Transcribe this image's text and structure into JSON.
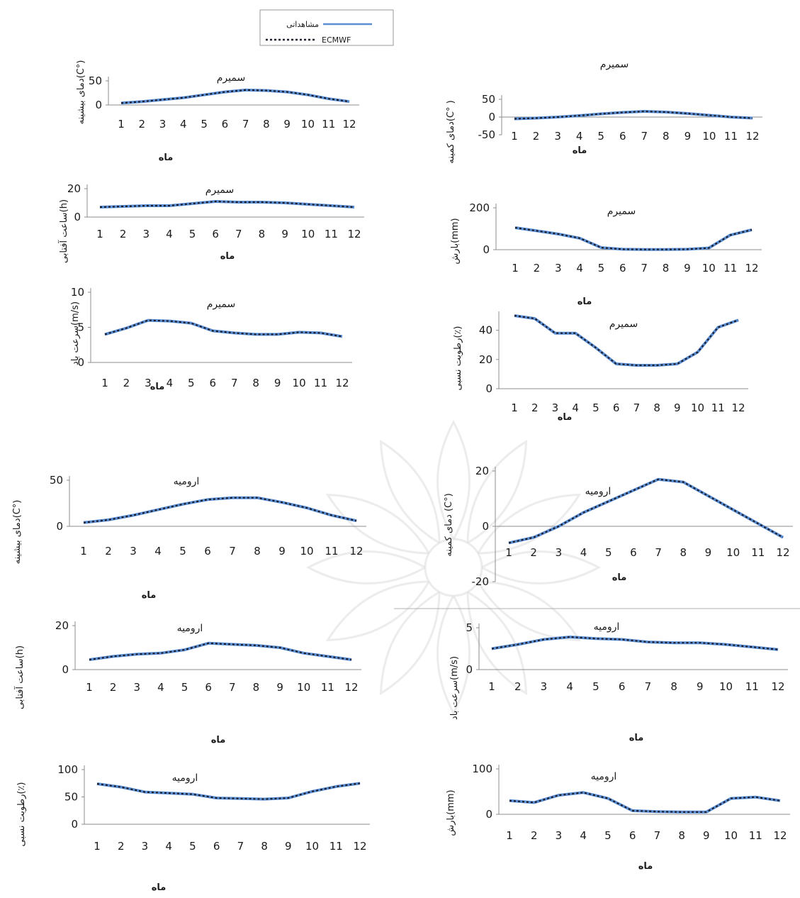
{
  "legend": {
    "observed": "مشاهداتی",
    "model": "ECMWF"
  },
  "chart_data": [
    {
      "id": "s-tmax",
      "type": "line",
      "title": "سمیرم",
      "xlabel": "ماه",
      "ylabel": "دمای بیشینه(C°)",
      "categories": [
        "1",
        "2",
        "3",
        "4",
        "5",
        "6",
        "7",
        "8",
        "9",
        "10",
        "11",
        "12"
      ],
      "yticks": [
        "0",
        "50"
      ],
      "ylim": [
        0,
        50
      ],
      "series": [
        {
          "name": "مشاهداتی",
          "values": [
            4,
            7,
            11,
            15,
            21,
            27,
            31,
            30,
            27,
            21,
            13,
            7
          ]
        },
        {
          "name": "ECMWF",
          "values": [
            4,
            7,
            11,
            15,
            21,
            27,
            31,
            30,
            27,
            21,
            13,
            7
          ]
        }
      ]
    },
    {
      "id": "s-tmin",
      "type": "line",
      "title": "سمیرم",
      "xlabel": "ماه",
      "ylabel": "دمای کمینه(C° )",
      "categories": [
        "1",
        "2",
        "3",
        "4",
        "5",
        "6",
        "7",
        "8",
        "9",
        "10",
        "11",
        "12"
      ],
      "yticks": [
        "-50",
        "0",
        "50"
      ],
      "ylim": [
        -50,
        50
      ],
      "series": [
        {
          "name": "مشاهداتی",
          "values": [
            -5,
            -3,
            0,
            4,
            9,
            13,
            16,
            14,
            10,
            5,
            0,
            -3
          ]
        },
        {
          "name": "ECMWF",
          "values": [
            -5,
            -3,
            0,
            4,
            9,
            13,
            16,
            14,
            10,
            5,
            0,
            -3
          ]
        }
      ]
    },
    {
      "id": "s-sun",
      "type": "line",
      "title": "سمیرم",
      "xlabel": "ماه",
      "ylabel": "ساعت آفتابی(h)",
      "categories": [
        "1",
        "2",
        "3",
        "4",
        "5",
        "6",
        "7",
        "8",
        "9",
        "10",
        "11",
        "12"
      ],
      "yticks": [
        "0",
        "20"
      ],
      "ylim": [
        0,
        20
      ],
      "series": [
        {
          "name": "مشاهداتی",
          "values": [
            7,
            7.5,
            8,
            8,
            9.5,
            11,
            10.5,
            10.5,
            10,
            9,
            8,
            7
          ]
        },
        {
          "name": "ECMWF",
          "values": [
            7,
            7.5,
            8,
            8,
            9.5,
            11,
            10.5,
            10.5,
            10,
            9,
            8,
            7
          ]
        }
      ]
    },
    {
      "id": "s-prec",
      "type": "line",
      "title": "سمیرم",
      "xlabel": "ماه",
      "ylabel": "بارش(mm)",
      "categories": [
        "1",
        "2",
        "3",
        "4",
        "5",
        "6",
        "7",
        "8",
        "9",
        "10",
        "11",
        "12"
      ],
      "yticks": [
        "0",
        "200"
      ],
      "ylim": [
        0,
        200
      ],
      "series": [
        {
          "name": "مشاهداتی",
          "values": [
            105,
            90,
            75,
            55,
            10,
            2,
            1,
            1,
            2,
            8,
            70,
            95
          ]
        },
        {
          "name": "ECMWF",
          "values": [
            105,
            90,
            75,
            55,
            10,
            2,
            1,
            1,
            2,
            8,
            70,
            95
          ]
        }
      ]
    },
    {
      "id": "s-wind",
      "type": "line",
      "title": "سمیرم",
      "xlabel": "ماه",
      "ylabel": "سرعت باد(m/s)",
      "categories": [
        "1",
        "2",
        "3",
        "4",
        "5",
        "6",
        "7",
        "8",
        "9",
        "10",
        "11",
        "12"
      ],
      "yticks": [
        "0",
        "5",
        "10"
      ],
      "ylim": [
        0,
        10
      ],
      "series": [
        {
          "name": "مشاهداتی",
          "values": [
            4,
            4.9,
            6,
            5.9,
            5.6,
            4.5,
            4.2,
            4,
            4,
            4.3,
            4.2,
            3.7
          ]
        },
        {
          "name": "ECMWF",
          "values": [
            4,
            4.9,
            6,
            5.9,
            5.6,
            4.5,
            4.2,
            4,
            4,
            4.3,
            4.2,
            3.7
          ]
        }
      ]
    },
    {
      "id": "s-rh",
      "type": "line",
      "title": "سمیرم",
      "xlabel": "ماه",
      "ylabel": "رطوبت نسبی(٪)",
      "categories": [
        "1",
        "2",
        "3",
        "4",
        "5",
        "6",
        "7",
        "8",
        "9",
        "10",
        "11",
        "12"
      ],
      "yticks": [
        "0",
        "20",
        "40"
      ],
      "ylim": [
        0,
        50
      ],
      "series": [
        {
          "name": "مشاهداتی",
          "values": [
            50,
            48,
            38,
            38,
            28,
            17,
            16,
            16,
            17,
            25,
            42,
            47
          ]
        },
        {
          "name": "ECMWF",
          "values": [
            50,
            48,
            38,
            38,
            28,
            17,
            16,
            16,
            17,
            25,
            42,
            47
          ]
        }
      ]
    },
    {
      "id": "u-tmax",
      "type": "line",
      "title": "ارومیه",
      "xlabel": "ماه",
      "ylabel": "دمای بیشینه(C°)",
      "categories": [
        "1",
        "2",
        "3",
        "4",
        "5",
        "6",
        "7",
        "8",
        "9",
        "10",
        "11",
        "12"
      ],
      "yticks": [
        "0",
        "50"
      ],
      "ylim": [
        0,
        50
      ],
      "series": [
        {
          "name": "مشاهداتی",
          "values": [
            4,
            7,
            12,
            18,
            24,
            29,
            31,
            31,
            26,
            20,
            12,
            6
          ]
        },
        {
          "name": "ECMWF",
          "values": [
            4,
            7,
            12,
            18,
            24,
            29,
            31,
            31,
            26,
            20,
            12,
            6
          ]
        }
      ]
    },
    {
      "id": "u-tmin",
      "type": "line",
      "title": "ارومیه",
      "xlabel": "ماه",
      "ylabel": "دمای کمینه (C°)",
      "categories": [
        "1",
        "2",
        "3",
        "4",
        "5",
        "6",
        "7",
        "8",
        "9",
        "10",
        "11",
        "12"
      ],
      "yticks": [
        "-20",
        "0",
        "20"
      ],
      "ylim": [
        -20,
        20
      ],
      "series": [
        {
          "name": "مشاهداتی",
          "values": [
            -6,
            -4,
            0,
            5,
            9,
            13,
            17,
            16,
            11,
            6,
            1,
            -4
          ]
        },
        {
          "name": "ECMWF",
          "values": [
            -6,
            -4,
            0,
            5,
            9,
            13,
            17,
            16,
            11,
            6,
            1,
            -4
          ]
        }
      ]
    },
    {
      "id": "u-sun",
      "type": "line",
      "title": "ارومیه",
      "xlabel": "ماه",
      "ylabel": "ساعت آفتابی(h)",
      "categories": [
        "1",
        "2",
        "3",
        "4",
        "5",
        "6",
        "7",
        "8",
        "9",
        "10",
        "11",
        "12"
      ],
      "yticks": [
        "0",
        "20"
      ],
      "ylim": [
        0,
        20
      ],
      "series": [
        {
          "name": "مشاهداتی",
          "values": [
            4.5,
            6,
            7,
            7.5,
            9,
            12,
            11.5,
            11,
            10,
            7.5,
            6,
            4.5
          ]
        },
        {
          "name": "ECMWF",
          "values": [
            4.5,
            6,
            7,
            7.5,
            9,
            12,
            11.5,
            11,
            10,
            7.5,
            6,
            4.5
          ]
        }
      ]
    },
    {
      "id": "u-wind",
      "type": "line",
      "title": "ارومیه",
      "xlabel": "ماه",
      "ylabel": "سرعت باد(m/s)",
      "categories": [
        "1",
        "2",
        "3",
        "4",
        "5",
        "6",
        "7",
        "8",
        "9",
        "10",
        "11",
        "12"
      ],
      "yticks": [
        "0",
        "5"
      ],
      "ylim": [
        0,
        5
      ],
      "series": [
        {
          "name": "مشاهداتی",
          "values": [
            2.5,
            3,
            3.6,
            3.9,
            3.7,
            3.6,
            3.3,
            3.2,
            3.2,
            3,
            2.7,
            2.4
          ]
        },
        {
          "name": "ECMWF",
          "values": [
            2.5,
            3,
            3.6,
            3.9,
            3.7,
            3.6,
            3.3,
            3.2,
            3.2,
            3,
            2.7,
            2.4
          ]
        }
      ]
    },
    {
      "id": "u-rh",
      "type": "line",
      "title": "ارومیه",
      "xlabel": "ماه",
      "ylabel": "رطوبت نسبی(٪)",
      "categories": [
        "1",
        "2",
        "3",
        "4",
        "5",
        "6",
        "7",
        "8",
        "9",
        "10",
        "11",
        "12"
      ],
      "yticks": [
        "0",
        "50",
        "100"
      ],
      "ylim": [
        0,
        100
      ],
      "series": [
        {
          "name": "مشاهداتی",
          "values": [
            74,
            68,
            59,
            57,
            55,
            48,
            47,
            46,
            48,
            60,
            69,
            75
          ]
        },
        {
          "name": "ECMWF",
          "values": [
            74,
            68,
            59,
            57,
            55,
            48,
            47,
            46,
            48,
            60,
            69,
            75
          ]
        }
      ]
    },
    {
      "id": "u-prec",
      "type": "line",
      "title": "ارومیه",
      "xlabel": "ماه",
      "ylabel": "بارش(mm)",
      "categories": [
        "1",
        "2",
        "3",
        "4",
        "5",
        "6",
        "7",
        "8",
        "9",
        "10",
        "11",
        "12"
      ],
      "yticks": [
        "0",
        "100"
      ],
      "ylim": [
        0,
        100
      ],
      "series": [
        {
          "name": "مشاهداتی",
          "values": [
            30,
            26,
            42,
            48,
            35,
            8,
            6,
            5,
            5,
            35,
            38,
            30
          ]
        },
        {
          "name": "ECMWF",
          "values": [
            30,
            26,
            42,
            48,
            35,
            8,
            6,
            5,
            5,
            35,
            38,
            30
          ]
        }
      ]
    }
  ]
}
